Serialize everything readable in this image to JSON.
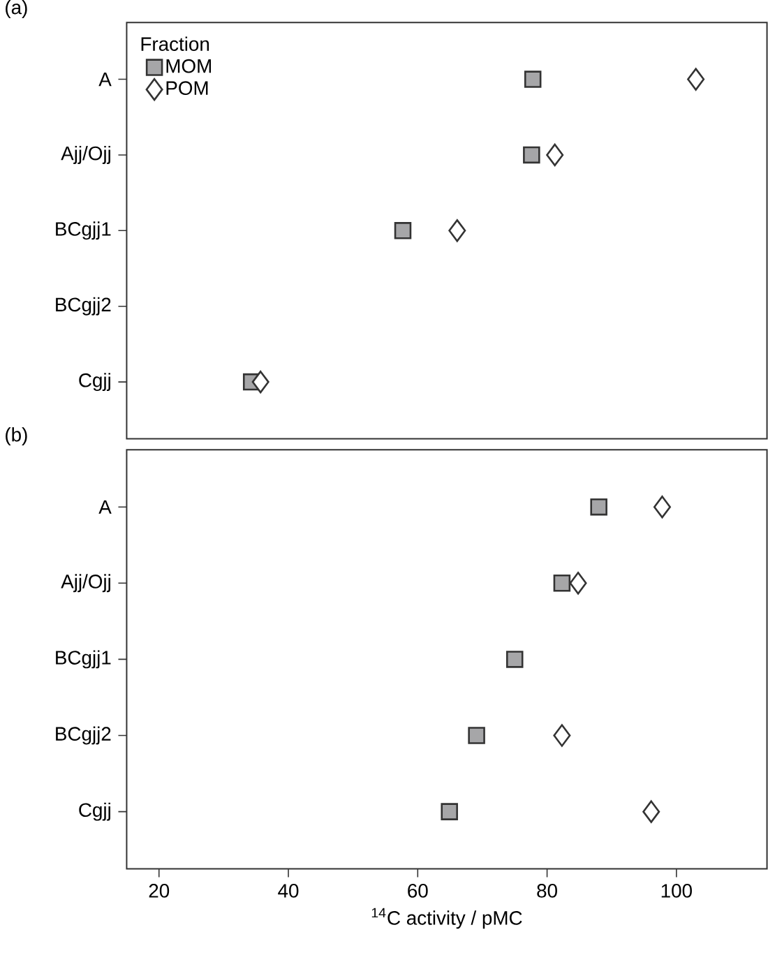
{
  "chart_data": [
    {
      "type": "scatter",
      "title": "(a)",
      "orientation": "horizontal",
      "categories": [
        "A",
        "Ajj/Ojj",
        "BCgjj1",
        "BCgjj2",
        "Cgjj"
      ],
      "xlim": [
        15,
        114
      ],
      "tick_labels": "y",
      "legend": "top left",
      "legend_title": "Fraction",
      "series": [
        {
          "name": "MOM",
          "color": "#a6a6a8",
          "marker": "square",
          "values": [
            77.8,
            77.6,
            57.7,
            null,
            34.3
          ]
        },
        {
          "name": "POM",
          "color": "#ffffff",
          "marker": "diamond",
          "values": [
            103.0,
            81.2,
            66.1,
            null,
            35.7
          ]
        }
      ]
    },
    {
      "type": "scatter",
      "title": "(b)",
      "orientation": "horizontal",
      "categories": [
        "A",
        "Ajj/Ojj",
        "BCgjj1",
        "BCgjj2",
        "Cgjj"
      ],
      "xlim": [
        15,
        114
      ],
      "xticks": [
        20,
        40,
        60,
        80,
        100
      ],
      "xlabel": "$^{14}$C activity / pMC",
      "series": [
        {
          "color": "#a6a6a8",
          "marker": "square",
          "values": [
            88.0,
            82.3,
            75.0,
            69.1,
            64.9
          ]
        },
        {
          "color": "#ffffff",
          "marker": "diamond",
          "values": [
            97.8,
            84.8,
            null,
            82.3,
            96.1
          ]
        }
      ]
    }
  ]
}
